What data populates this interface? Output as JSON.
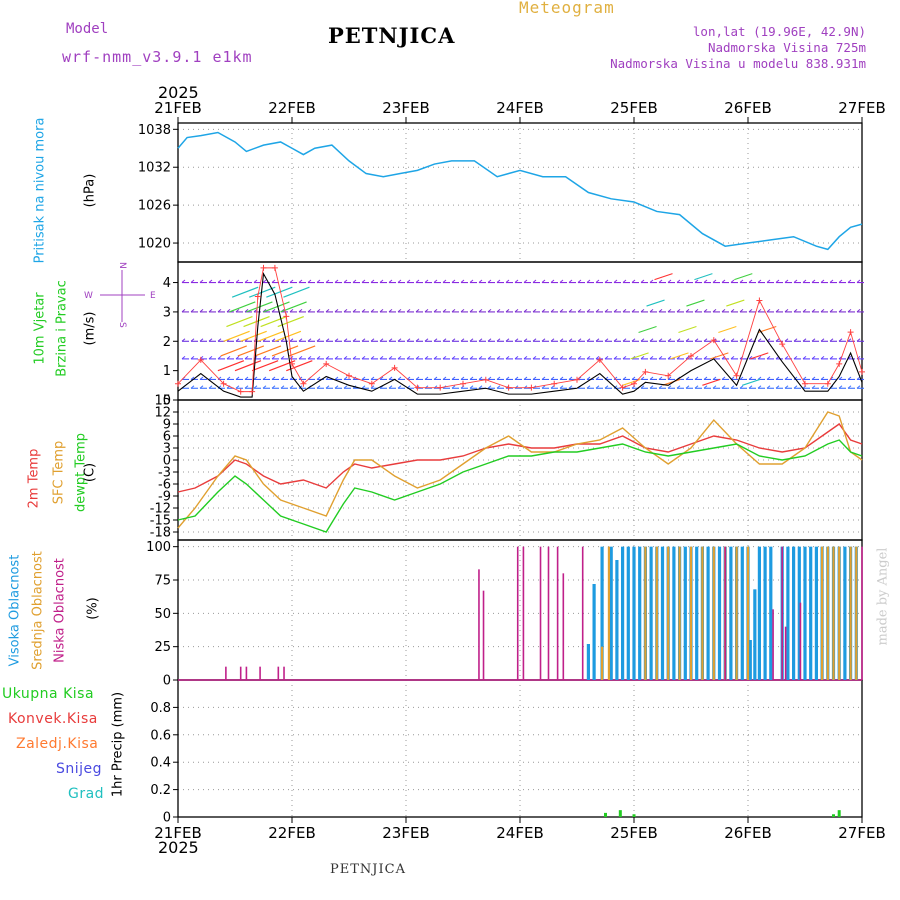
{
  "header": {
    "model_label": "Model",
    "model_name": "wrf-nmm_v3.9.1  e1km",
    "station": "PETNJICA",
    "meteogram_label": "Meteogram",
    "lonlat": "lon,lat (19.96E, 42.9N)",
    "altitude": "Nadmorska Visina 725m",
    "model_altitude": "Nadmorska Visina u modelu 838.931m",
    "year_top": "2025",
    "year_bottom": "2025",
    "footer_station": "PETNJICA",
    "credit": "made by Angel"
  },
  "colors": {
    "pressure": "#1ea5e6",
    "temp2m": "#e83c3c",
    "sfc": "#e0a030",
    "dewpt": "#22cc22",
    "high_cloud": "#1e9be0",
    "mid_cloud": "#e0a030",
    "low_cloud": "#c0208a",
    "label_magenta": "#a040c0"
  },
  "dates": [
    "21FEB",
    "22FEB",
    "23FEB",
    "24FEB",
    "25FEB",
    "26FEB",
    "27FEB"
  ],
  "panels": {
    "pressure": {
      "title": "Pritisak na nivou mora",
      "unit": "(hPa)",
      "ticks": [
        "1038",
        "1032",
        "1026",
        "1020"
      ]
    },
    "wind": {
      "title1": "10m Vjetar",
      "title2": "Brzina i Pravac",
      "unit": "(m/s)",
      "ticks": [
        "4",
        "3",
        "2",
        "1",
        "0"
      ],
      "compass_w": "W",
      "compass_e": "E",
      "compass_n": "N",
      "compass_s": "S"
    },
    "temp": {
      "label1": "2m Temp",
      "label2": "SFC Temp",
      "label3": "dewpt Temp",
      "unit": "(C)",
      "ticks": [
        "15",
        "12",
        "9",
        "6",
        "3",
        "0",
        "-3",
        "-6",
        "-9",
        "-12",
        "-15",
        "-18"
      ]
    },
    "cloud": {
      "label1": "Visoka Oblacnost",
      "label2": "Srednja Oblacnost",
      "label3": "Niska Oblacnost",
      "unit": "(%)",
      "ticks": [
        "100",
        "75",
        "50",
        "25",
        "0"
      ]
    },
    "precip": {
      "label1": "Ukupna Kisa",
      "label2": "Konvek.Kisa",
      "label3": "Zaledj.Kisa",
      "label4": "Snijeg",
      "label5": "Grad",
      "unit": "1hr Precip (mm)",
      "ticks": [
        "0.8",
        "0.6",
        "0.4",
        "0.2",
        "0"
      ]
    }
  },
  "chart_data": [
    {
      "type": "line",
      "title": "Pritisak na nivou mora",
      "ylabel": "(hPa)",
      "ylim": [
        1017,
        1039
      ],
      "x_range_days": [
        0,
        6
      ],
      "series": [
        {
          "x": [
            0,
            0.08,
            0.2,
            0.35,
            0.5,
            0.6,
            0.75,
            0.9,
            1.0,
            1.1,
            1.2,
            1.35,
            1.5,
            1.65,
            1.8,
            1.95,
            2.1,
            2.25,
            2.4,
            2.6,
            2.8,
            3.0,
            3.2,
            3.4,
            3.6,
            3.8,
            4.0,
            4.2,
            4.4,
            4.6,
            4.8,
            5.0,
            5.2,
            5.4,
            5.6,
            5.7,
            5.8,
            5.9,
            6.0
          ],
          "y": [
            1035,
            1036.7,
            1037,
            1037.5,
            1036,
            1034.5,
            1035.5,
            1036,
            1035,
            1034,
            1035,
            1035.5,
            1033,
            1031,
            1030.5,
            1031,
            1031.5,
            1032.5,
            1033,
            1033,
            1030.5,
            1031.5,
            1030.5,
            1030.5,
            1028,
            1027,
            1026.5,
            1025,
            1024.5,
            1021.5,
            1019.5,
            1020,
            1020.5,
            1021,
            1019.5,
            1019,
            1021,
            1022.5,
            1023
          ]
        }
      ]
    },
    {
      "type": "line",
      "title": "10m Vjetar Brzina i Pravac",
      "ylabel": "(m/s)",
      "ylim": [
        0,
        4.7
      ],
      "series": [
        {
          "x": [
            0,
            0.2,
            0.4,
            0.55,
            0.65,
            0.7,
            0.75,
            0.85,
            0.95,
            1.0,
            1.1,
            1.3,
            1.5,
            1.7,
            1.9,
            2.1,
            2.3,
            2.5,
            2.7,
            2.9,
            3.1,
            3.3,
            3.5,
            3.7,
            3.9,
            4.0,
            4.1,
            4.3,
            4.5,
            4.7,
            4.9,
            5.1,
            5.3,
            5.5,
            5.7,
            5.8,
            5.9,
            6.0
          ],
          "y": [
            0.3,
            0.9,
            0.3,
            0.1,
            0.1,
            2.5,
            4.3,
            3.6,
            2.0,
            0.8,
            0.3,
            0.8,
            0.5,
            0.3,
            0.7,
            0.2,
            0.2,
            0.3,
            0.4,
            0.2,
            0.2,
            0.3,
            0.4,
            0.9,
            0.2,
            0.3,
            0.6,
            0.5,
            1.0,
            1.4,
            0.5,
            2.4,
            1.3,
            0.3,
            0.3,
            0.8,
            1.6,
            0.6
          ]
        }
      ]
    },
    {
      "type": "line",
      "title": "Temp",
      "ylabel": "(C)",
      "ylim": [
        -20,
        15
      ],
      "series": [
        {
          "name": "2m Temp",
          "x": [
            0,
            0.15,
            0.35,
            0.5,
            0.6,
            0.75,
            0.9,
            1.1,
            1.3,
            1.45,
            1.55,
            1.7,
            1.9,
            2.1,
            2.3,
            2.5,
            2.7,
            2.9,
            3.1,
            3.3,
            3.5,
            3.7,
            3.9,
            4.1,
            4.3,
            4.5,
            4.7,
            4.9,
            5.1,
            5.3,
            5.5,
            5.7,
            5.8,
            5.9,
            6.0
          ],
          "y": [
            -8,
            -7,
            -4,
            0,
            -1,
            -4,
            -6,
            -5,
            -7,
            -3,
            -1,
            -2,
            -1,
            0,
            0,
            1,
            3,
            4,
            3,
            3,
            4,
            4,
            6,
            3,
            2,
            4,
            6,
            5,
            3,
            2,
            3,
            7,
            9,
            5,
            4
          ]
        },
        {
          "name": "SFC Temp",
          "x": [
            0,
            0.15,
            0.35,
            0.5,
            0.6,
            0.75,
            0.9,
            1.1,
            1.3,
            1.45,
            1.55,
            1.7,
            1.9,
            2.1,
            2.3,
            2.5,
            2.7,
            2.9,
            3.1,
            3.3,
            3.5,
            3.7,
            3.9,
            4.1,
            4.3,
            4.5,
            4.7,
            4.9,
            5.1,
            5.3,
            5.5,
            5.7,
            5.8,
            5.9,
            6.0
          ],
          "y": [
            -17,
            -12,
            -4,
            1,
            0,
            -6,
            -10,
            -12,
            -14,
            -5,
            0,
            0,
            -4,
            -7,
            -5,
            -1,
            3,
            6,
            2,
            2,
            4,
            5,
            8,
            3,
            -1,
            3,
            10,
            4,
            -1,
            -1,
            3,
            12,
            11,
            2,
            0
          ]
        },
        {
          "name": "dewpt Temp",
          "x": [
            0,
            0.15,
            0.35,
            0.5,
            0.6,
            0.75,
            0.9,
            1.1,
            1.3,
            1.45,
            1.55,
            1.7,
            1.9,
            2.1,
            2.3,
            2.5,
            2.7,
            2.9,
            3.1,
            3.3,
            3.5,
            3.7,
            3.9,
            4.1,
            4.3,
            4.5,
            4.7,
            4.9,
            5.1,
            5.3,
            5.5,
            5.7,
            5.8,
            5.9,
            6.0
          ],
          "y": [
            -15,
            -14,
            -8,
            -4,
            -6,
            -10,
            -14,
            -16,
            -18,
            -11,
            -7,
            -8,
            -10,
            -8,
            -6,
            -3,
            -1,
            1,
            1,
            2,
            2,
            3,
            4,
            2,
            1,
            2,
            3,
            4,
            1,
            0,
            1,
            4,
            5,
            2,
            1
          ]
        }
      ]
    },
    {
      "type": "bar",
      "title": "Oblacnost",
      "ylabel": "(%)",
      "ylim": [
        0,
        100
      ],
      "series": [
        {
          "name": "Niska Oblacnost",
          "x": [
            0.42,
            0.55,
            0.6,
            0.72,
            0.88,
            0.93,
            2.64,
            2.68,
            2.98,
            3.03,
            3.18,
            3.25,
            3.33,
            3.38,
            3.55,
            4.8,
            5.22,
            5.3,
            5.33,
            5.46,
            6.0
          ],
          "y": [
            10,
            10,
            10,
            10,
            10,
            10,
            83,
            67,
            100,
            100,
            100,
            100,
            100,
            80,
            100,
            100,
            53,
            100,
            40,
            58,
            100
          ]
        },
        {
          "name": "Srednja Oblacnost",
          "x": [
            3.72,
            3.78,
            4.1,
            4.2,
            4.3,
            4.4,
            4.5,
            4.6,
            4.7,
            4.8,
            4.9,
            5.0,
            5.65,
            5.7,
            5.75,
            5.8,
            5.9,
            5.95
          ],
          "y": [
            25,
            100,
            100,
            100,
            100,
            100,
            100,
            100,
            100,
            100,
            100,
            100,
            100,
            100,
            100,
            100,
            100,
            100
          ]
        },
        {
          "name": "Visoka Oblacnost",
          "x": [
            3.6,
            3.65,
            3.72,
            3.8,
            3.85,
            3.9,
            3.95,
            4.0,
            4.05,
            4.1,
            4.15,
            4.2,
            4.25,
            4.3,
            4.35,
            4.4,
            4.45,
            4.5,
            4.55,
            4.6,
            4.65,
            4.7,
            4.75,
            4.8,
            4.85,
            4.9,
            4.95,
            5.0,
            5.02,
            5.06,
            5.1,
            5.15,
            5.2,
            5.3,
            5.35,
            5.4,
            5.45,
            5.5,
            5.55,
            5.6,
            5.65,
            5.7,
            5.75,
            5.8,
            5.85,
            5.9,
            5.95
          ],
          "y": [
            27,
            72,
            100,
            100,
            90,
            100,
            100,
            100,
            100,
            100,
            100,
            100,
            100,
            100,
            100,
            100,
            100,
            100,
            100,
            100,
            100,
            100,
            100,
            100,
            100,
            100,
            100,
            100,
            30,
            68,
            100,
            100,
            100,
            100,
            100,
            100,
            100,
            100,
            100,
            100,
            100,
            100,
            100,
            100,
            100,
            100,
            100
          ]
        }
      ]
    },
    {
      "type": "bar",
      "title": "1hr Precip",
      "ylabel": "1hr Precip (mm)",
      "ylim": [
        0,
        1.0
      ],
      "series": [
        {
          "name": "Ukupna Kisa",
          "x": [
            3.75,
            3.88,
            4.0,
            5.75,
            5.8
          ],
          "y": [
            0.03,
            0.05,
            0.02,
            0.02,
            0.05
          ]
        }
      ]
    }
  ]
}
